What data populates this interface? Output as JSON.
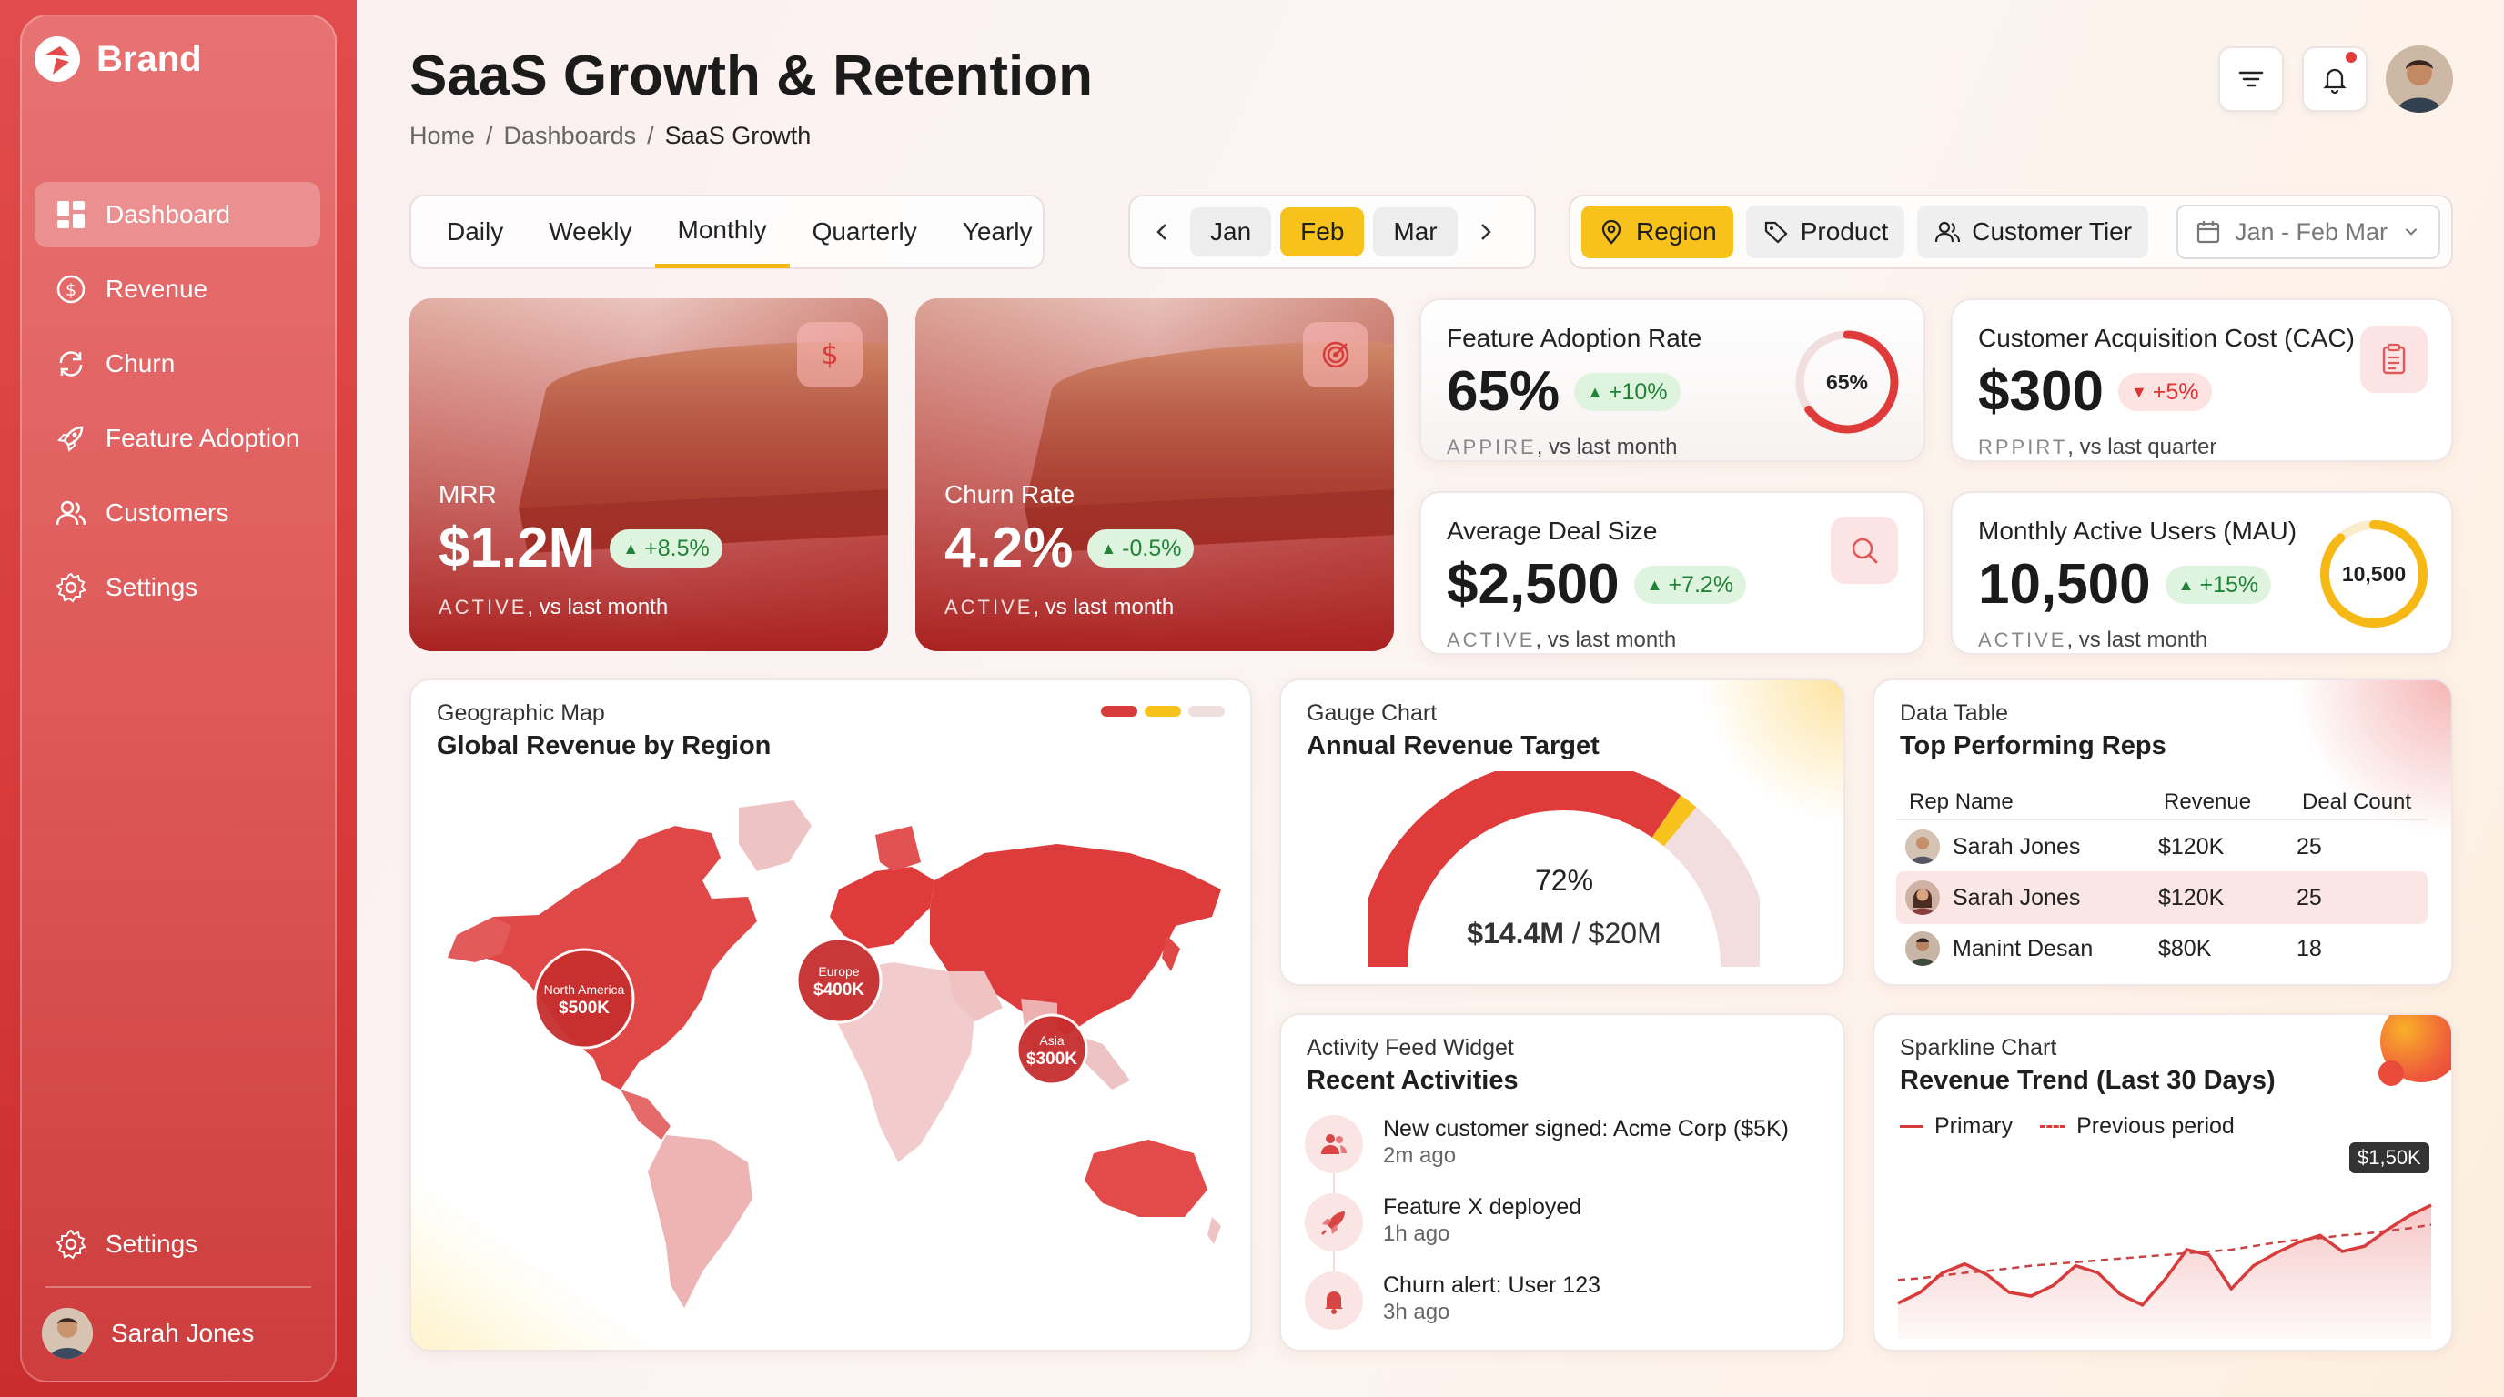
{
  "app": {
    "brand": "Brand"
  },
  "sidebar": {
    "items": [
      {
        "label": "Dashboard",
        "icon": "dashboard-icon",
        "active": true
      },
      {
        "label": "Revenue",
        "icon": "dollar-circle-icon"
      },
      {
        "label": "Churn",
        "icon": "refresh-icon"
      },
      {
        "label": "Feature Adoption",
        "icon": "rocket-icon"
      },
      {
        "label": "Customers",
        "icon": "users-icon"
      },
      {
        "label": "Settings",
        "icon": "gear-icon"
      }
    ],
    "bottom_settings": "Settings",
    "user_name": "Sarah Jones"
  },
  "header": {
    "title": "SaaS Growth & Retention",
    "breadcrumb": [
      "Home",
      "/",
      "Dashboards",
      "/",
      "SaaS Growth"
    ]
  },
  "period_tabs": [
    "Daily",
    "Weekly",
    "Monthly",
    "Quarterly",
    "Yearly"
  ],
  "period_active": "Monthly",
  "months": [
    "Jan",
    "Feb",
    "Mar"
  ],
  "month_active": "Feb",
  "filters": {
    "region": "Region",
    "product": "Product",
    "customer_tier": "Customer Tier",
    "date_range": "Jan - Feb Mar"
  },
  "kpis": {
    "mrr": {
      "label": "MRR",
      "value": "$1.2M",
      "delta": "+8.5%",
      "caption": "ACTIVE",
      "suffix": ", vs last month"
    },
    "churn": {
      "label": "Churn Rate",
      "value": "4.2%",
      "delta": "-0.5%",
      "caption": "ACTIVE",
      "suffix": ", vs last month"
    },
    "adoption": {
      "label": "Feature Adoption Rate",
      "value": "65%",
      "delta": "+10%",
      "caption": "APPIRE",
      "suffix": ", vs last month",
      "ring_label": "65%",
      "ring_fraction": 0.65
    },
    "cac": {
      "label": "Customer Acquisition Cost (CAC)",
      "value": "$300",
      "delta": "+5%",
      "caption": "RPPIRT",
      "suffix": ", vs last quarter"
    },
    "deal": {
      "label": "Average Deal Size",
      "value": "$2,500",
      "delta": "+7.2%",
      "caption": "ACTIVE",
      "suffix": ", vs last month"
    },
    "mau": {
      "label": "Monthly Active Users (MAU)",
      "value": "10,500",
      "delta": "+15%",
      "caption": "ACTIVE",
      "suffix": ", vs last month",
      "ring_label": "10,500",
      "ring_fraction": 0.88
    }
  },
  "map": {
    "type": "Geographic Map",
    "title": "Global Revenue by Region",
    "bubbles": [
      {
        "region": "North America",
        "value": "$500K"
      },
      {
        "region": "Europe",
        "value": "$400K"
      },
      {
        "region": "Asia",
        "value": "$300K"
      }
    ]
  },
  "gauge": {
    "type": "Gauge Chart",
    "title": "Annual Revenue Target",
    "percent": "72%",
    "fraction": 0.72,
    "current": "$14.4M",
    "separator": " / ",
    "target": "$20M"
  },
  "table": {
    "type": "Data Table",
    "title": "Top Performing Reps",
    "columns": [
      "Rep Name",
      "Revenue",
      "Deal Count"
    ],
    "rows": [
      {
        "name": "Sarah Jones",
        "revenue": "$120K",
        "deals": "25"
      },
      {
        "name": "Sarah Jones",
        "revenue": "$120K",
        "deals": "25"
      },
      {
        "name": "Manint Desan",
        "revenue": "$80K",
        "deals": "18"
      }
    ]
  },
  "activity": {
    "type": "Activity Feed Widget",
    "title": "Recent Activities",
    "items": [
      {
        "text": "New customer signed: Acme Corp ($5K)",
        "time": "2m ago",
        "icon": "users-icon"
      },
      {
        "text": "Feature X deployed",
        "time": "1h ago",
        "icon": "rocket-icon"
      },
      {
        "text": "Churn alert: User 123",
        "time": "3h ago",
        "icon": "bell-icon"
      }
    ]
  },
  "sparkline": {
    "type": "Sparkline Chart",
    "title": "Revenue Trend (Last 30 Days)",
    "legend": [
      "Primary",
      "Previous period"
    ],
    "last_label": "$1,50K"
  },
  "chart_data": [
    {
      "type": "line",
      "title": "Revenue Trend (Last 30 Days)",
      "series": [
        {
          "name": "Primary",
          "values": [
            40,
            52,
            74,
            84,
            72,
            52,
            48,
            60,
            82,
            74,
            50,
            38,
            66,
            100,
            94,
            56,
            82,
            96,
            108,
            116,
            98,
            104,
            122,
            138,
            150
          ]
        },
        {
          "name": "Previous period",
          "values": [
            66,
            68,
            71,
            74,
            76,
            79,
            82,
            84,
            86,
            88,
            90,
            92,
            94,
            96,
            98,
            100,
            104,
            108,
            111,
            113,
            116,
            118,
            121,
            124,
            128
          ]
        }
      ],
      "ylim": [
        0,
        200
      ]
    },
    {
      "type": "pie",
      "title": "Annual Revenue Target",
      "values": [
        72,
        28
      ]
    }
  ],
  "colors": {
    "accent": "#e03b3b",
    "highlight": "#f8c21c",
    "positive": "#22823a",
    "negative": "#dd3333"
  }
}
